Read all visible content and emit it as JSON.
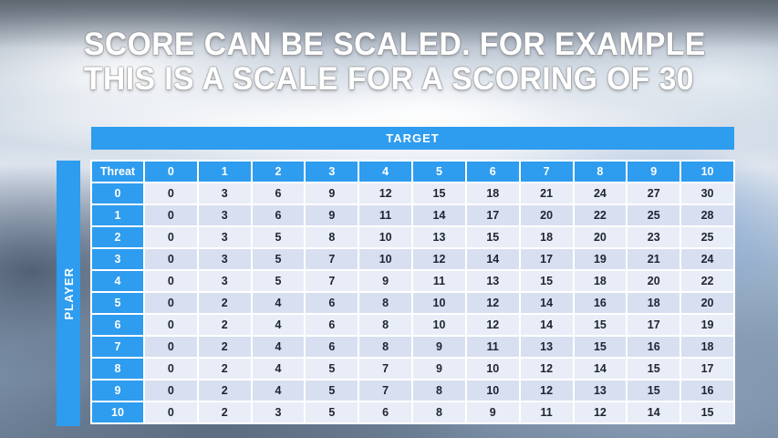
{
  "title": {
    "line1": "SCORE CAN BE SCALED. FOR EXAMPLE",
    "line2": "THIS IS A SCALE FOR A SCORING OF 30"
  },
  "table": {
    "target_label": "TARGET",
    "player_label": "PLAYER",
    "corner_label": "Threat",
    "col_headers": [
      "0",
      "1",
      "2",
      "3",
      "4",
      "5",
      "6",
      "7",
      "8",
      "9",
      "10"
    ],
    "rows": [
      {
        "label": "0",
        "values": [
          0,
          3,
          6,
          9,
          12,
          15,
          18,
          21,
          24,
          27,
          30
        ]
      },
      {
        "label": "1",
        "values": [
          0,
          3,
          6,
          9,
          11,
          14,
          17,
          20,
          22,
          25,
          28
        ]
      },
      {
        "label": "2",
        "values": [
          0,
          3,
          5,
          8,
          10,
          13,
          15,
          18,
          20,
          23,
          25
        ]
      },
      {
        "label": "3",
        "values": [
          0,
          3,
          5,
          7,
          10,
          12,
          14,
          17,
          19,
          21,
          24
        ]
      },
      {
        "label": "4",
        "values": [
          0,
          3,
          5,
          7,
          9,
          11,
          13,
          15,
          18,
          20,
          22
        ]
      },
      {
        "label": "5",
        "values": [
          0,
          2,
          4,
          6,
          8,
          10,
          12,
          14,
          16,
          18,
          20
        ]
      },
      {
        "label": "6",
        "values": [
          0,
          2,
          4,
          6,
          8,
          10,
          12,
          14,
          15,
          17,
          19
        ]
      },
      {
        "label": "7",
        "values": [
          0,
          2,
          4,
          6,
          8,
          9,
          11,
          13,
          15,
          16,
          18
        ]
      },
      {
        "label": "8",
        "values": [
          0,
          2,
          4,
          5,
          7,
          9,
          10,
          12,
          14,
          15,
          17
        ]
      },
      {
        "label": "9",
        "values": [
          0,
          2,
          4,
          5,
          7,
          8,
          10,
          12,
          13,
          15,
          16
        ]
      },
      {
        "label": "10",
        "values": [
          0,
          2,
          3,
          5,
          6,
          8,
          9,
          11,
          12,
          14,
          15
        ]
      }
    ]
  },
  "colors": {
    "header_blue": "#2E9CEF",
    "header_text": "#FFFFFF",
    "row_even": "#E9EDF7",
    "row_odd": "#D8DFF1",
    "cell_text": "#1E2430",
    "title_text": "#FFFFFF"
  }
}
